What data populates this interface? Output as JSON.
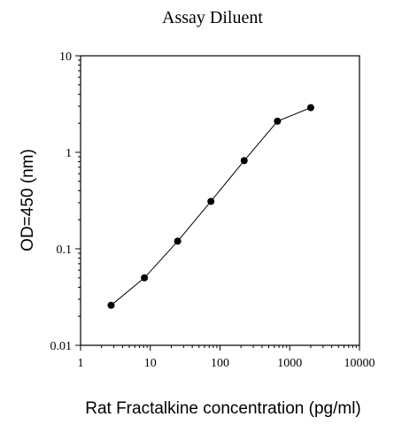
{
  "chart_data": {
    "type": "line",
    "title": "Assay Diluent",
    "xlabel": "Rat Fractalkine concentration (pg/ml)",
    "ylabel": "OD=450 (nm)",
    "x_scale": "log",
    "y_scale": "log",
    "xlim": [
      1,
      10000
    ],
    "ylim": [
      0.01,
      10
    ],
    "x_ticks": [
      1,
      10,
      100,
      1000,
      10000
    ],
    "x_tick_labels": [
      "1",
      "10",
      "100",
      "1000",
      "10000"
    ],
    "y_ticks": [
      0.01,
      0.1,
      1,
      10
    ],
    "y_tick_labels": [
      "0.01",
      "0.1",
      "1",
      "10"
    ],
    "grid": false,
    "series": [
      {
        "x": [
          2.74,
          8.23,
          24.7,
          74.1,
          222,
          667,
          2000
        ],
        "y": [
          0.026,
          0.05,
          0.12,
          0.31,
          0.82,
          2.1,
          2.9
        ]
      }
    ],
    "colors": {
      "line": "#000000",
      "marker": "#000000",
      "axis": "#000000"
    }
  }
}
